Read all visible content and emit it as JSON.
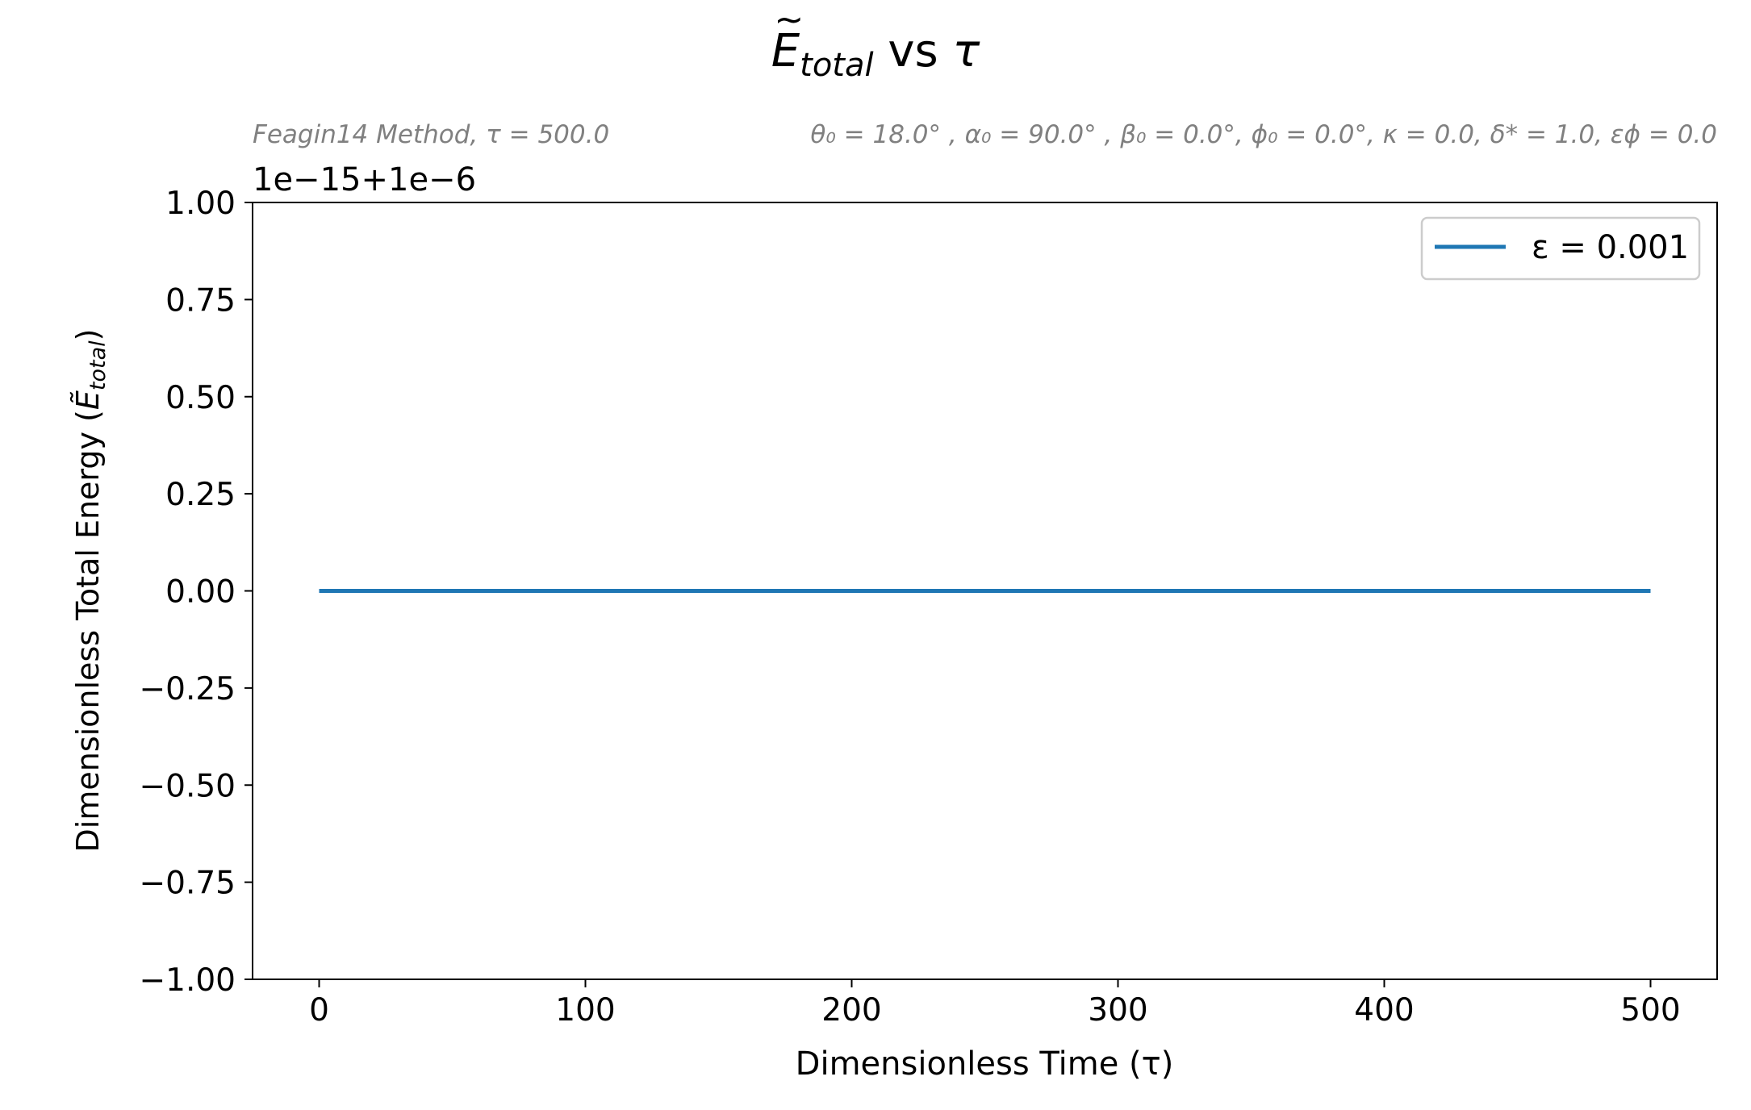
{
  "chart_data": {
    "type": "line",
    "title": {
      "symbol": "E",
      "tilde": "~",
      "subscript": "total",
      "suffix": " vs ",
      "tau": "τ"
    },
    "subtitle_left": "Feagin14 Method, τ = 500.0",
    "subtitle_right": "θ₀ = 18.0° , α₀ = 90.0° , β₀ = 0.0°, ϕ₀ = 0.0°, κ = 0.0, δ* = 1.0, εϕ = 0.0",
    "offset_label": "1e−15+1e−6",
    "xlabel": "Dimensionless Time (τ)",
    "ylabel": {
      "prefix": "Dimensionless Total Energy (",
      "symbol": "Ẽ",
      "subscript": "total",
      "suffix": ")"
    },
    "xlim": [
      -25,
      525
    ],
    "ylim": [
      -1.0,
      1.0
    ],
    "x_ticks": [
      0,
      100,
      200,
      300,
      400,
      500
    ],
    "x_tick_labels": [
      "0",
      "100",
      "200",
      "300",
      "400",
      "500"
    ],
    "y_ticks": [
      -1.0,
      -0.75,
      -0.5,
      -0.25,
      0.0,
      0.25,
      0.5,
      0.75,
      1.0
    ],
    "y_tick_labels": [
      "−1.00",
      "−0.75",
      "−0.50",
      "−0.25",
      "0.00",
      "0.25",
      "0.50",
      "0.75",
      "1.00"
    ],
    "grid": false,
    "legend_position": "top-right",
    "series": [
      {
        "name": "ε = 0.001",
        "color": "#1f77b4",
        "x": [
          0,
          500
        ],
        "y": [
          0.0,
          0.0
        ]
      }
    ]
  }
}
